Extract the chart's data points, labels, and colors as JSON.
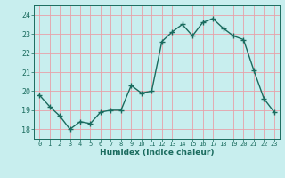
{
  "x": [
    0,
    1,
    2,
    3,
    4,
    5,
    6,
    7,
    8,
    9,
    10,
    11,
    12,
    13,
    14,
    15,
    16,
    17,
    18,
    19,
    20,
    21,
    22,
    23
  ],
  "y": [
    19.8,
    19.2,
    18.7,
    18.0,
    18.4,
    18.3,
    18.9,
    19.0,
    19.0,
    20.3,
    19.9,
    20.0,
    22.6,
    23.1,
    23.5,
    22.9,
    23.6,
    23.8,
    23.3,
    22.9,
    22.7,
    21.1,
    19.6,
    18.9
  ],
  "line_color": "#1a6b5e",
  "marker": "+",
  "bg_color": "#c8eeee",
  "grid_color": "#e8a0a8",
  "xlabel": "Humidex (Indice chaleur)",
  "xlim": [
    -0.5,
    23.5
  ],
  "ylim": [
    17.5,
    24.5
  ],
  "yticks": [
    18,
    19,
    20,
    21,
    22,
    23,
    24
  ],
  "xticks": [
    0,
    1,
    2,
    3,
    4,
    5,
    6,
    7,
    8,
    9,
    10,
    11,
    12,
    13,
    14,
    15,
    16,
    17,
    18,
    19,
    20,
    21,
    22,
    23
  ],
  "font_color": "#1a6b5e",
  "linewidth": 1.0,
  "markersize": 4,
  "markeredgewidth": 1.0
}
